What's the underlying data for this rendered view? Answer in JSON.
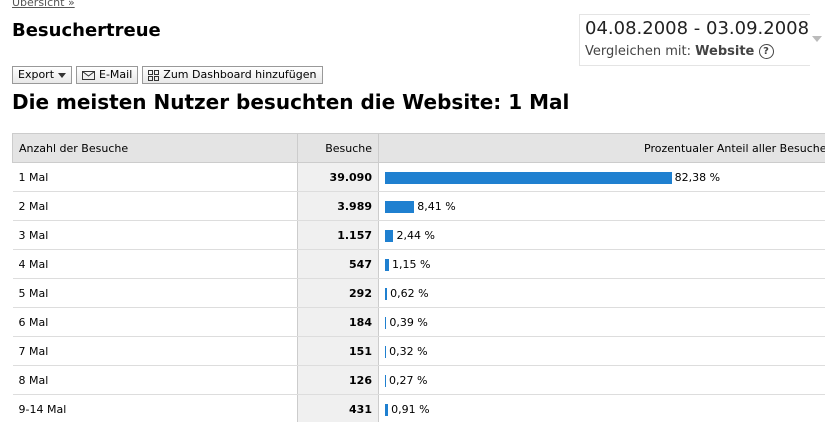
{
  "breadcrumb": "Übersicht »",
  "header": {
    "title": "Besuchertreue",
    "date_range": "04.08.2008 - 03.09.2008",
    "compare_label": "Vergleichen mit:",
    "compare_value": "Website"
  },
  "toolbar": [
    "Export",
    "E-Mail",
    "Zum Dashboard hinzufügen"
  ],
  "headline": "Die meisten Nutzer besuchten die Website: 1 Mal",
  "table": {
    "columns": [
      "Anzahl der Besuche",
      "Besuche",
      "Prozentualer Anteil aller Besucher"
    ],
    "rows": [
      {
        "label": "1 Mal",
        "visits": "39.090",
        "share": 82.38,
        "share_label": "82,38 %"
      },
      {
        "label": "2 Mal",
        "visits": "3.989",
        "share": 8.41,
        "share_label": "8,41 %"
      },
      {
        "label": "3 Mal",
        "visits": "1.157",
        "share": 2.44,
        "share_label": "2,44 %"
      },
      {
        "label": "4 Mal",
        "visits": "547",
        "share": 1.15,
        "share_label": "1,15 %"
      },
      {
        "label": "5 Mal",
        "visits": "292",
        "share": 0.62,
        "share_label": "0,62 %"
      },
      {
        "label": "6 Mal",
        "visits": "184",
        "share": 0.39,
        "share_label": "0,39 %"
      },
      {
        "label": "7 Mal",
        "visits": "151",
        "share": 0.32,
        "share_label": "0,32 %"
      },
      {
        "label": "8 Mal",
        "visits": "126",
        "share": 0.27,
        "share_label": "0,27 %"
      },
      {
        "label": "9-14 Mal",
        "visits": "431",
        "share": 0.91,
        "share_label": "0,91 %"
      }
    ]
  }
}
